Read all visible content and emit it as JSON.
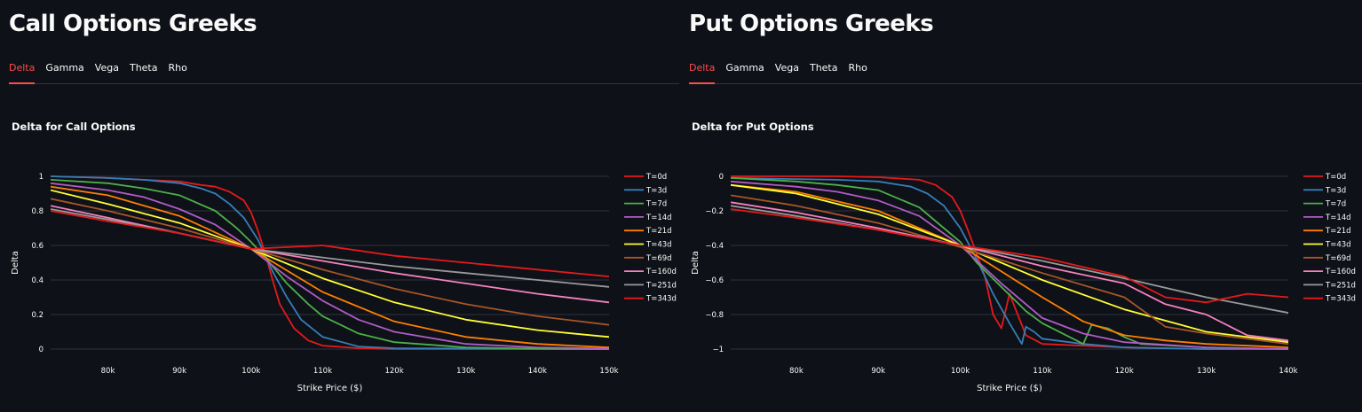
{
  "left": {
    "heading": "Call Options Greeks",
    "tabs": [
      "Delta",
      "Gamma",
      "Vega",
      "Theta",
      "Rho"
    ],
    "active_tab": "Delta",
    "chart_title": "Delta for Call Options"
  },
  "right": {
    "heading": "Put Options Greeks",
    "tabs": [
      "Delta",
      "Gamma",
      "Vega",
      "Theta",
      "Rho"
    ],
    "active_tab": "Delta",
    "chart_title": "Delta for Put Options"
  },
  "colors": {
    "accent": "#ff4b4b",
    "background": "#0e1117",
    "grid": "#31333f"
  },
  "chart_data": [
    {
      "type": "line",
      "title": "Delta for Call Options",
      "xlabel": "Strike Price ($)",
      "ylabel": "Delta",
      "xlim": [
        72000,
        150000
      ],
      "ylim": [
        0,
        1
      ],
      "x_ticks": [
        80000,
        90000,
        100000,
        110000,
        120000,
        130000,
        140000,
        150000
      ],
      "x_tick_labels": [
        "80k",
        "90k",
        "100k",
        "110k",
        "120k",
        "130k",
        "140k",
        "150k"
      ],
      "y_ticks": [
        0,
        0.2,
        0.4,
        0.6,
        0.8,
        1
      ],
      "y_tick_labels": [
        "0",
        "0.2",
        "0.4",
        "0.6",
        "0.8",
        "1"
      ],
      "grid": "horizontal",
      "legend": "right",
      "series": [
        {
          "name": "T=0d",
          "color": "#e41a1c",
          "x": [
            72000,
            80000,
            85000,
            90000,
            93000,
            95000,
            97000,
            99000,
            100000,
            101000,
            102000,
            103000,
            104000,
            106000,
            108000,
            110000,
            115000,
            120000,
            150000
          ],
          "y": [
            1,
            0.99,
            0.98,
            0.97,
            0.95,
            0.94,
            0.91,
            0.86,
            0.79,
            0.68,
            0.55,
            0.4,
            0.26,
            0.12,
            0.05,
            0.02,
            0.005,
            0,
            0
          ]
        },
        {
          "name": "T=3d",
          "color": "#377eb8",
          "x": [
            72000,
            80000,
            85000,
            90000,
            93000,
            95000,
            97000,
            99000,
            101000,
            103000,
            105000,
            107000,
            110000,
            115000,
            120000,
            150000
          ],
          "y": [
            1,
            0.99,
            0.98,
            0.96,
            0.93,
            0.9,
            0.84,
            0.76,
            0.63,
            0.45,
            0.3,
            0.17,
            0.07,
            0.015,
            0.005,
            0
          ]
        },
        {
          "name": "T=7d",
          "color": "#4daf4a",
          "x": [
            72000,
            80000,
            85000,
            90000,
            95000,
            98000,
            100000,
            102000,
            105000,
            108000,
            110000,
            115000,
            120000,
            130000,
            140000,
            150000
          ],
          "y": [
            0.98,
            0.96,
            0.93,
            0.89,
            0.8,
            0.7,
            0.62,
            0.53,
            0.38,
            0.26,
            0.19,
            0.09,
            0.04,
            0.01,
            0.002,
            0
          ]
        },
        {
          "name": "T=14d",
          "color": "#b05cc6",
          "x": [
            72000,
            80000,
            85000,
            90000,
            95000,
            100000,
            105000,
            110000,
            115000,
            120000,
            130000,
            140000,
            150000
          ],
          "y": [
            0.96,
            0.92,
            0.88,
            0.81,
            0.72,
            0.58,
            0.42,
            0.28,
            0.17,
            0.1,
            0.03,
            0.01,
            0.003
          ]
        },
        {
          "name": "T=21d",
          "color": "#ff7f00",
          "x": [
            72000,
            80000,
            90000,
            100000,
            110000,
            120000,
            130000,
            140000,
            150000
          ],
          "y": [
            0.94,
            0.89,
            0.77,
            0.58,
            0.33,
            0.16,
            0.07,
            0.03,
            0.01
          ]
        },
        {
          "name": "T=43d",
          "color": "#ffff33",
          "x": [
            72000,
            80000,
            90000,
            100000,
            110000,
            120000,
            130000,
            140000,
            150000
          ],
          "y": [
            0.92,
            0.84,
            0.73,
            0.58,
            0.41,
            0.27,
            0.17,
            0.11,
            0.07
          ]
        },
        {
          "name": "T=69d",
          "color": "#a65628",
          "x": [
            72000,
            80000,
            90000,
            100000,
            110000,
            120000,
            130000,
            140000,
            150000
          ],
          "y": [
            0.87,
            0.8,
            0.7,
            0.58,
            0.46,
            0.35,
            0.26,
            0.19,
            0.14
          ]
        },
        {
          "name": "T=160d",
          "color": "#f781bf",
          "x": [
            72000,
            80000,
            90000,
            100000,
            110000,
            120000,
            130000,
            140000,
            150000
          ],
          "y": [
            0.83,
            0.76,
            0.67,
            0.58,
            0.51,
            0.44,
            0.38,
            0.32,
            0.27
          ]
        },
        {
          "name": "T=251d",
          "color": "#999999",
          "x": [
            72000,
            80000,
            90000,
            100000,
            110000,
            120000,
            130000,
            140000,
            150000
          ],
          "y": [
            0.81,
            0.75,
            0.67,
            0.58,
            0.53,
            0.48,
            0.44,
            0.4,
            0.36
          ]
        },
        {
          "name": "T=343d",
          "color": "#e41a1c",
          "x": [
            72000,
            80000,
            90000,
            100000,
            110000,
            120000,
            130000,
            140000,
            150000
          ],
          "y": [
            0.8,
            0.74,
            0.67,
            0.58,
            0.6,
            0.54,
            0.5,
            0.46,
            0.42
          ]
        }
      ]
    },
    {
      "type": "line",
      "title": "Delta for Put Options",
      "xlabel": "Strike Price ($)",
      "ylabel": "Delta",
      "xlim": [
        72000,
        140000
      ],
      "ylim": [
        -1,
        0
      ],
      "x_ticks": [
        80000,
        90000,
        100000,
        110000,
        120000,
        130000,
        140000
      ],
      "x_tick_labels": [
        "80k",
        "90k",
        "100k",
        "110k",
        "120k",
        "130k",
        "140k"
      ],
      "y_ticks": [
        -1,
        -0.8,
        -0.6,
        -0.4,
        -0.2,
        0
      ],
      "y_tick_labels": [
        "−1",
        "−0.8",
        "−0.6",
        "−0.4",
        "−0.2",
        "0"
      ],
      "grid": "horizontal",
      "legend": "right",
      "series": [
        {
          "name": "T=0d",
          "color": "#e41a1c",
          "x": [
            72000,
            85000,
            90000,
            95000,
            97000,
            99000,
            100000,
            101000,
            102000,
            103000,
            104000,
            105000,
            106000,
            107000,
            108000,
            110000,
            120000,
            130000,
            140000
          ],
          "y": [
            0,
            0,
            -0.005,
            -0.02,
            -0.05,
            -0.12,
            -0.2,
            -0.32,
            -0.45,
            -0.58,
            -0.8,
            -0.88,
            -0.68,
            -0.8,
            -0.92,
            -0.97,
            -0.99,
            -1,
            -1
          ]
        },
        {
          "name": "T=3d",
          "color": "#377eb8",
          "x": [
            72000,
            85000,
            90000,
            94000,
            96000,
            98000,
            100000,
            102000,
            104000,
            106000,
            107500,
            108000,
            109000,
            110000,
            115000,
            120000,
            130000,
            140000
          ],
          "y": [
            -0.01,
            -0.02,
            -0.03,
            -0.06,
            -0.1,
            -0.17,
            -0.3,
            -0.48,
            -0.68,
            -0.85,
            -0.97,
            -0.87,
            -0.9,
            -0.94,
            -0.97,
            -0.99,
            -1,
            -1
          ]
        },
        {
          "name": "T=7d",
          "color": "#4daf4a",
          "x": [
            72000,
            80000,
            85000,
            90000,
            95000,
            98000,
            100000,
            102000,
            105000,
            108000,
            110000,
            115000,
            116000,
            118000,
            120000,
            122000,
            130000,
            140000
          ],
          "y": [
            -0.01,
            -0.03,
            -0.05,
            -0.08,
            -0.18,
            -0.3,
            -0.38,
            -0.5,
            -0.64,
            -0.78,
            -0.85,
            -0.97,
            -0.86,
            -0.88,
            -0.93,
            -0.97,
            -0.99,
            -1
          ]
        },
        {
          "name": "T=14d",
          "color": "#b05cc6",
          "x": [
            72000,
            80000,
            85000,
            90000,
            95000,
            100000,
            105000,
            110000,
            115000,
            120000,
            130000,
            140000
          ],
          "y": [
            -0.03,
            -0.06,
            -0.09,
            -0.14,
            -0.23,
            -0.4,
            -0.62,
            -0.82,
            -0.91,
            -0.96,
            -0.99,
            -1
          ]
        },
        {
          "name": "T=21d",
          "color": "#ff7f00",
          "x": [
            72000,
            80000,
            90000,
            100000,
            110000,
            115000,
            120000,
            125000,
            130000,
            140000
          ],
          "y": [
            -0.05,
            -0.09,
            -0.2,
            -0.4,
            -0.7,
            -0.84,
            -0.92,
            -0.95,
            -0.97,
            -0.99
          ]
        },
        {
          "name": "T=43d",
          "color": "#ffff33",
          "x": [
            72000,
            80000,
            90000,
            100000,
            110000,
            120000,
            130000,
            140000
          ],
          "y": [
            -0.05,
            -0.1,
            -0.22,
            -0.4,
            -0.6,
            -0.77,
            -0.9,
            -0.96
          ]
        },
        {
          "name": "T=69d",
          "color": "#a65628",
          "x": [
            72000,
            80000,
            90000,
            100000,
            110000,
            120000,
            125000,
            130000,
            140000
          ],
          "y": [
            -0.11,
            -0.17,
            -0.27,
            -0.41,
            -0.56,
            -0.7,
            -0.87,
            -0.91,
            -0.97
          ]
        },
        {
          "name": "T=160d",
          "color": "#f781bf",
          "x": [
            72000,
            80000,
            90000,
            100000,
            110000,
            120000,
            125000,
            130000,
            135000,
            140000
          ],
          "y": [
            -0.15,
            -0.21,
            -0.3,
            -0.4,
            -0.52,
            -0.62,
            -0.74,
            -0.8,
            -0.92,
            -0.95
          ]
        },
        {
          "name": "T=251d",
          "color": "#999999",
          "x": [
            72000,
            80000,
            90000,
            100000,
            110000,
            120000,
            130000,
            140000
          ],
          "y": [
            -0.17,
            -0.23,
            -0.31,
            -0.4,
            -0.49,
            -0.59,
            -0.7,
            -0.79
          ]
        },
        {
          "name": "T=343d",
          "color": "#e41a1c",
          "x": [
            72000,
            80000,
            90000,
            100000,
            110000,
            120000,
            125000,
            130000,
            135000,
            140000
          ],
          "y": [
            -0.19,
            -0.24,
            -0.31,
            -0.4,
            -0.47,
            -0.58,
            -0.7,
            -0.73,
            -0.68,
            -0.7
          ]
        }
      ]
    }
  ]
}
